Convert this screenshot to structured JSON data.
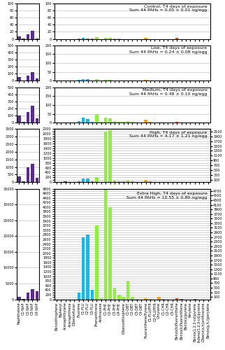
{
  "chart_data": [
    {
      "type": "bar",
      "categories": [
        "Naphthalene",
        "C1-NAP",
        "C2-NAP",
        "C3-NAP",
        "C4-NAP"
      ],
      "values": [
        8,
        2,
        12,
        22,
        2
      ],
      "colors": [
        "#5B2C8D",
        "#5B2C8D",
        "#5B2C8D",
        "#5B2C8D",
        "#5B2C8D"
      ],
      "ylim": [
        0,
        100
      ],
      "yticks": [
        0,
        20,
        40,
        60,
        80,
        100
      ],
      "grid": "y",
      "tick_labels": "y"
    },
    {
      "type": "bar",
      "categories": [
        "Benzothiophene",
        "Biphenyl",
        "Acenaphthylene",
        "Acenaphthene",
        "Dibenzofuran",
        "Fluorene",
        "C1-FLU",
        "C2-FLU",
        "C3-FLU",
        "Phenanthrene",
        "Anthracene",
        "C1-PHE",
        "C2-PHE",
        "C3-PHE",
        "C4-PHE",
        "Dibenzothiophene",
        "C1-DBT",
        "C2-DBT",
        "C3-DBT",
        "C4-DBT",
        "Fluoranthene/Pyrene",
        "C1-FLU/PYR",
        "C2-FLU/PYR",
        "Chrysene",
        "C1-CHR",
        "C2-CHR",
        "C3-CHR",
        "Benzo(b)fluoranthene",
        "Benzo(k)fluoranthene",
        "Benzo(a)pyrene",
        "Perylene",
        "Benzo(1,2,3-cd)pyrene",
        "Indeno(1,2,3-cd)pyrene",
        "Dibenz(a,h)anthracene",
        "Benzo(g,h,i)perylene"
      ],
      "values": [
        0,
        0,
        0,
        0,
        0,
        2,
        3,
        2,
        1,
        5,
        0,
        3,
        3,
        2,
        1,
        0,
        0,
        0,
        0,
        0,
        3,
        0,
        0,
        0,
        0,
        0,
        0,
        4,
        0,
        0,
        0,
        0,
        0,
        0,
        0
      ],
      "colors": [
        "#5B2C8D",
        "#5B2C8D",
        "#5B2C8D",
        "#5B2C8D",
        "#5B2C8D",
        "#00BFFF",
        "#00BFFF",
        "#00BFFF",
        "#00BFFF",
        "#90EE40",
        "#90EE40",
        "#90EE40",
        "#90EE40",
        "#90EE40",
        "#90EE40",
        "#90EE40",
        "#90EE40",
        "#90EE40",
        "#90EE40",
        "#90EE40",
        "#FFA500",
        "#FFA500",
        "#FFA500",
        "#FFA500",
        "#FFA500",
        "#FFA500",
        "#FFA500",
        "#E05010",
        "#E05010",
        "#E05010",
        "#E05010",
        "#E05010",
        "#E05010",
        "#E05010",
        "#E05010"
      ],
      "ylim": [
        0,
        100
      ],
      "yticks": [
        0,
        20,
        40,
        60,
        80,
        100
      ],
      "grid": "y",
      "tick_labels": "y",
      "annotation": "Control, T4 days of exposure\nSum 44 PAHs = 0.05 ± 0.01 ng/egg"
    },
    {
      "type": "bar",
      "categories": [
        "Naphthalene",
        "C1-NAP",
        "C2-NAP",
        "C3-NAP",
        "C4-NAP"
      ],
      "values": [
        50,
        5,
        70,
        120,
        30
      ],
      "colors": [
        "#5B2C8D",
        "#5B2C8D",
        "#5B2C8D",
        "#5B2C8D",
        "#5B2C8D"
      ],
      "ylim": [
        0,
        500
      ],
      "yticks": [
        0,
        100,
        200,
        300,
        400,
        500
      ],
      "grid": "y",
      "tick_labels": "y"
    },
    {
      "type": "bar",
      "categories": [
        "Benzothiophene",
        "Biphenyl",
        "Acenaphthylene",
        "Acenaphthene",
        "Dibenzofuran",
        "Fluorene",
        "C1-FLU",
        "C2-FLU",
        "C3-FLU",
        "Phenanthrene",
        "Anthracene",
        "C1-PHE",
        "C2-PHE",
        "C3-PHE",
        "C4-PHE",
        "Dibenzothiophene",
        "C1-DBT",
        "C2-DBT",
        "C3-DBT",
        "C4-DBT",
        "Fluoranthene/Pyrene",
        "C1-FLU/PYR",
        "C2-FLU/PYR",
        "Chrysene",
        "C1-CHR",
        "C2-CHR",
        "C3-CHR",
        "Benzo(b)fluoranthene",
        "Benzo(k)fluoranthene",
        "Benzo(a)pyrene",
        "Perylene",
        "Benzo(1,2,3-cd)pyrene",
        "Indeno(1,2,3-cd)pyrene",
        "Dibenz(a,h)anthracene",
        "Benzo(g,h,i)perylene"
      ],
      "values": [
        0,
        0,
        0,
        0,
        0,
        5,
        10,
        10,
        3,
        10,
        2,
        5,
        5,
        3,
        2,
        2,
        2,
        1,
        0,
        0,
        5,
        2,
        0,
        0,
        0,
        0,
        0,
        2,
        0,
        0,
        0,
        0,
        0,
        0,
        0
      ],
      "colors": [
        "#5B2C8D",
        "#5B2C8D",
        "#5B2C8D",
        "#5B2C8D",
        "#5B2C8D",
        "#00BFFF",
        "#00BFFF",
        "#00BFFF",
        "#00BFFF",
        "#90EE40",
        "#90EE40",
        "#90EE40",
        "#90EE40",
        "#90EE40",
        "#90EE40",
        "#90EE40",
        "#90EE40",
        "#90EE40",
        "#90EE40",
        "#90EE40",
        "#FFA500",
        "#FFA500",
        "#FFA500",
        "#FFA500",
        "#FFA500",
        "#FFA500",
        "#FFA500",
        "#E05010",
        "#E05010",
        "#E05010",
        "#E05010",
        "#E05010",
        "#E05010",
        "#E05010",
        "#E05010"
      ],
      "ylim": [
        0,
        200
      ],
      "yticks": [
        0,
        50,
        100,
        150,
        200
      ],
      "grid": "y",
      "tick_labels": "y",
      "annotation": "Low, T4 days of exposure\nSum 44 PAHs = 0.24 ± 0.08 ng/egg"
    },
    {
      "type": "bar",
      "categories": [
        "Naphthalene",
        "C1-NAP",
        "C2-NAP",
        "C3-NAP",
        "C4-NAP"
      ],
      "values": [
        100,
        8,
        150,
        240,
        60
      ],
      "colors": [
        "#5B2C8D",
        "#5B2C8D",
        "#5B2C8D",
        "#5B2C8D",
        "#5B2C8D"
      ],
      "ylim": [
        0,
        500
      ],
      "yticks": [
        0,
        100,
        200,
        300,
        400,
        500
      ],
      "grid": "y",
      "tick_labels": "y"
    },
    {
      "type": "bar",
      "categories": [
        "Benzothiophene",
        "Biphenyl",
        "Acenaphthylene",
        "Acenaphthene",
        "Dibenzofuran",
        "Fluorene",
        "C1-FLU",
        "C2-FLU",
        "C3-FLU",
        "Phenanthrene",
        "Anthracene",
        "C1-PHE",
        "C2-PHE",
        "C3-PHE",
        "C4-PHE",
        "Dibenzothiophene",
        "C1-DBT",
        "C2-DBT",
        "C3-DBT",
        "C4-DBT",
        "Fluoranthene/Pyrene",
        "C1-FLU/PYR",
        "C2-FLU/PYR",
        "Chrysene",
        "C1-CHR",
        "C2-CHR",
        "C3-CHR",
        "Benzo(b)fluoranthene",
        "Benzo(k)fluoranthene",
        "Benzo(a)pyrene",
        "Perylene",
        "Benzo(1,2,3-cd)pyrene",
        "Indeno(1,2,3-cd)pyrene",
        "Dibenz(a,h)anthracene",
        "Benzo(g,h,i)perylene"
      ],
      "values": [
        0,
        0,
        0,
        0,
        0,
        8,
        30,
        20,
        5,
        50,
        5,
        30,
        25,
        10,
        5,
        5,
        8,
        5,
        2,
        0,
        15,
        5,
        0,
        2,
        0,
        0,
        0,
        5,
        2,
        2,
        0,
        0,
        0,
        0,
        0
      ],
      "colors": [
        "#5B2C8D",
        "#5B2C8D",
        "#5B2C8D",
        "#5B2C8D",
        "#5B2C8D",
        "#00BFFF",
        "#00BFFF",
        "#00BFFF",
        "#00BFFF",
        "#90EE40",
        "#90EE40",
        "#90EE40",
        "#90EE40",
        "#90EE40",
        "#90EE40",
        "#90EE40",
        "#90EE40",
        "#90EE40",
        "#90EE40",
        "#90EE40",
        "#FFA500",
        "#FFA500",
        "#FFA500",
        "#FFA500",
        "#FFA500",
        "#FFA500",
        "#FFA500",
        "#E05010",
        "#E05010",
        "#E05010",
        "#E05010",
        "#E05010",
        "#E05010",
        "#E05010",
        "#E05010"
      ],
      "ylim": [
        0,
        200
      ],
      "yticks": [
        0,
        50,
        100,
        150,
        200
      ],
      "grid": "y",
      "tick_labels": "y",
      "annotation": "Medium, T4 days of exposure\nSum 44 PAHs = 0.48 ± 0.10 ng/egg"
    },
    {
      "type": "bar",
      "categories": [
        "Naphthalene",
        "C1-NAP",
        "C2-NAP",
        "C3-NAP",
        "C4-NAP"
      ],
      "values": [
        400,
        50,
        1000,
        1200,
        300
      ],
      "colors": [
        "#5B2C8D",
        "#5B2C8D",
        "#5B2C8D",
        "#5B2C8D",
        "#5B2C8D"
      ],
      "ylim": [
        0,
        3500
      ],
      "yticks": [
        0,
        500,
        1000,
        1500,
        2000,
        2500,
        3000,
        3500
      ],
      "grid": "y",
      "tick_labels": "y"
    },
    {
      "type": "bar",
      "categories": [
        "Benzothiophene",
        "Biphenyl",
        "Acenaphthylene",
        "Acenaphthene",
        "Dibenzofuran",
        "Fluorene",
        "C1-FLU",
        "C2-FLU",
        "C3-FLU",
        "Phenanthrene",
        "Anthracene",
        "C1-PHE",
        "C2-PHE",
        "C3-PHE",
        "C4-PHE",
        "Dibenzothiophene",
        "C1-DBT",
        "C2-DBT",
        "C3-DBT",
        "C4-DBT",
        "Fluoranthene/Pyrene",
        "C1-FLU/PYR",
        "C2-FLU/PYR",
        "Chrysene",
        "C1-CHR",
        "C2-CHR",
        "C3-CHR",
        "Benzo(b)fluoranthene",
        "Benzo(k)fluoranthene",
        "Benzo(a)pyrene",
        "Perylene",
        "Benzo(1,2,3-cd)pyrene",
        "Indeno(1,2,3-cd)pyrene",
        "Dibenz(a,h)anthracene",
        "Benzo(g,h,i)perylene"
      ],
      "values": [
        0,
        0,
        50,
        0,
        0,
        50,
        150,
        150,
        50,
        200,
        20,
        2100,
        2150,
        80,
        30,
        25,
        80,
        40,
        15,
        5,
        100,
        30,
        5,
        20,
        5,
        0,
        0,
        20,
        5,
        5,
        0,
        0,
        0,
        0,
        0
      ],
      "colors": [
        "#5B2C8D",
        "#5B2C8D",
        "#5B2C8D",
        "#5B2C8D",
        "#5B2C8D",
        "#00BFFF",
        "#00BFFF",
        "#00BFFF",
        "#00BFFF",
        "#90EE40",
        "#90EE40",
        "#90EE40",
        "#90EE40",
        "#90EE40",
        "#90EE40",
        "#90EE40",
        "#90EE40",
        "#90EE40",
        "#90EE40",
        "#90EE40",
        "#FFA500",
        "#FFA500",
        "#FFA500",
        "#FFA500",
        "#FFA500",
        "#FFA500",
        "#FFA500",
        "#E05010",
        "#E05010",
        "#E05010",
        "#E05010",
        "#E05010",
        "#E05010",
        "#E05010",
        "#E05010"
      ],
      "ylim": [
        0,
        2200
      ],
      "yticks": [
        0,
        100,
        200,
        300,
        400,
        500,
        600,
        700,
        800,
        900,
        1000,
        1100,
        1200,
        1300,
        1400,
        1500,
        1600,
        1700,
        1800,
        1900,
        2000,
        2100,
        2200
      ],
      "grid": "y",
      "tick_labels": "y",
      "annotation": "High, T4 days of exposure\nSum 44 PAHs = 4.17 ± 1.21 ng/egg"
    },
    {
      "type": "bar",
      "categories": [
        "Naphthalene",
        "C1-NAP",
        "C2-NAP",
        "C3-NAP",
        "C4-NAP"
      ],
      "values": [
        800,
        200,
        2000,
        3200,
        2600
      ],
      "colors": [
        "#5B2C8D",
        "#5B2C8D",
        "#5B2C8D",
        "#5B2C8D",
        "#5B2C8D"
      ],
      "ylim": [
        0,
        35000
      ],
      "yticks": [
        0,
        5000,
        10000,
        15000,
        20000,
        25000,
        30000,
        35000
      ],
      "grid": "y"
    },
    {
      "type": "bar",
      "categories": [
        "Benzothiophene",
        "Biphenyl",
        "Acenaphthylene",
        "Acenaphthene",
        "Dibenzofuran",
        "Fluorene",
        "C1-FLU",
        "C2-FLU",
        "C3-FLU",
        "Phenanthrene",
        "Anthracene",
        "C1-PHE",
        "C2-PHE",
        "C3-PHE",
        "C4-PHE",
        "Dibenzothiophene",
        "C1-DBT",
        "C2-DBT",
        "C3-DBT",
        "C4-DBT",
        "Fluoranthene/Pyrene",
        "C1-FLU/PYR",
        "C2-FLU/PYR",
        "Chrysene",
        "C1-CHR",
        "C2-CHR",
        "C3-CHR",
        "Benzo(b)fluoranthene",
        "Benzo(k)fluoranthene",
        "Benzo(a)pyrene",
        "Perylene",
        "Benzo(1,2,3-cd)pyrene",
        "Indeno(1,2,3-cd)pyrene",
        "Dibenz(a,h)anthracene",
        "Benzo(g,h,i)perylene"
      ],
      "values": [
        0,
        0,
        0,
        0,
        0,
        300,
        2700,
        2800,
        400,
        3200,
        50,
        4800,
        4000,
        500,
        200,
        120,
        800,
        100,
        20,
        0,
        50,
        20,
        0,
        100,
        20,
        0,
        0,
        40,
        10,
        0,
        0,
        10,
        0,
        0,
        0
      ],
      "colors": [
        "#5B2C8D",
        "#5B2C8D",
        "#5B2C8D",
        "#5B2C8D",
        "#5B2C8D",
        "#00BFFF",
        "#00BFFF",
        "#00BFFF",
        "#00BFFF",
        "#90EE40",
        "#90EE40",
        "#90EE40",
        "#90EE40",
        "#90EE40",
        "#90EE40",
        "#90EE40",
        "#90EE40",
        "#90EE40",
        "#90EE40",
        "#90EE40",
        "#FFA500",
        "#FFA500",
        "#FFA500",
        "#FFA500",
        "#FFA500",
        "#FFA500",
        "#FFA500",
        "#E05010",
        "#E05010",
        "#E05010",
        "#E05010",
        "#E05010",
        "#E05010",
        "#E05010",
        "#E05010"
      ],
      "ylim": [
        0,
        4800
      ],
      "yticks": [
        0,
        100,
        200,
        300,
        400,
        500,
        600,
        700,
        800,
        900,
        1000,
        1100,
        1200,
        1300,
        1400,
        1500,
        1600,
        1700,
        1800,
        1900,
        2000,
        2100,
        2200,
        2300,
        2400,
        2500,
        2600,
        2700,
        2800,
        2900,
        3000,
        3100,
        3200,
        3300,
        3400,
        3500,
        3600,
        3700,
        3800,
        3900,
        4000,
        4100,
        4200,
        4300,
        4400,
        4500,
        4600,
        4700,
        4800
      ],
      "grid": "y",
      "annotation": "Extra High, T4 days of exposure\nSum 44 PAHs = 10.55 ± 0.89 ng/egg"
    }
  ]
}
